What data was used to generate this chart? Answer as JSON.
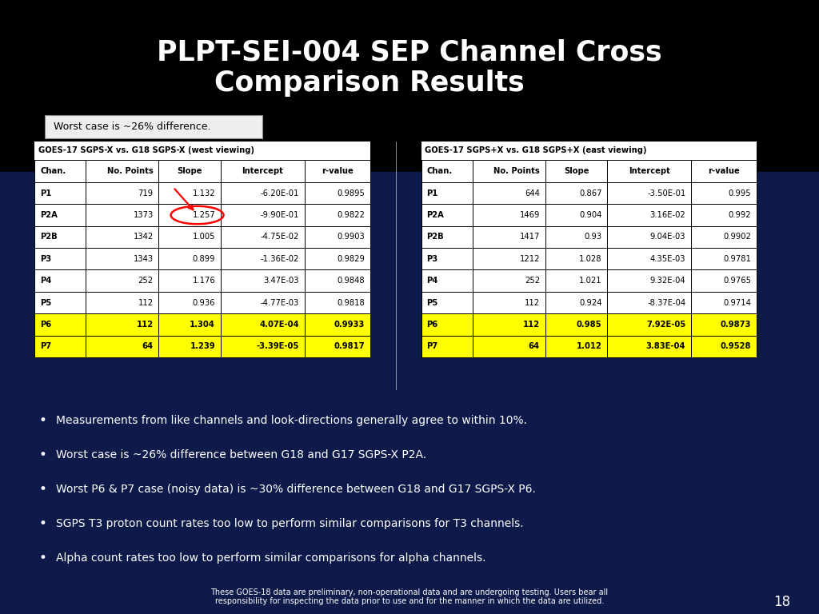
{
  "title_line1": "PLPT-SEI-004 SEP Channel Cross",
  "title_line2_normal": "Comparison ",
  "title_line2_bold": "Results",
  "background_color": "#000000",
  "title_color": "#ffffff",
  "table_bg": "#ffffff",
  "highlight_yellow": "#ffff00",
  "worst_case_label": "Worst case is ~26% difference.",
  "left_table_title": "GOES-17 SGPS-X vs. G18 SGPS-X (west viewing)",
  "right_table_title": "GOES-17 SGPS+X vs. G18 SGPS+X (east viewing)",
  "col_headers": [
    "Chan.",
    "No. Points",
    "Slope",
    "Intercept",
    "r-value"
  ],
  "left_data": [
    [
      "P1",
      "719",
      "1.132",
      "-6.20E-01",
      "0.9895"
    ],
    [
      "P2A",
      "1373",
      "1.257",
      "-9.90E-01",
      "0.9822"
    ],
    [
      "P2B",
      "1342",
      "1.005",
      "-4.75E-02",
      "0.9903"
    ],
    [
      "P3",
      "1343",
      "0.899",
      "-1.36E-02",
      "0.9829"
    ],
    [
      "P4",
      "252",
      "1.176",
      "3.47E-03",
      "0.9848"
    ],
    [
      "P5",
      "112",
      "0.936",
      "-4.77E-03",
      "0.9818"
    ],
    [
      "P6",
      "112",
      "1.304",
      "4.07E-04",
      "0.9933"
    ],
    [
      "P7",
      "64",
      "1.239",
      "-3.39E-05",
      "0.9817"
    ]
  ],
  "right_data": [
    [
      "P1",
      "644",
      "0.867",
      "-3.50E-01",
      "0.995"
    ],
    [
      "P2A",
      "1469",
      "0.904",
      "3.16E-02",
      "0.992"
    ],
    [
      "P2B",
      "1417",
      "0.93",
      "9.04E-03",
      "0.9902"
    ],
    [
      "P3",
      "1212",
      "1.028",
      "4.35E-03",
      "0.9781"
    ],
    [
      "P4",
      "252",
      "1.021",
      "9.32E-04",
      "0.9765"
    ],
    [
      "P5",
      "112",
      "0.924",
      "-8.37E-04",
      "0.9714"
    ],
    [
      "P6",
      "112",
      "0.985",
      "7.92E-05",
      "0.9873"
    ],
    [
      "P7",
      "64",
      "1.012",
      "3.83E-04",
      "0.9528"
    ]
  ],
  "yellow_rows": [
    6,
    7
  ],
  "bullet_points": [
    "Measurements from like channels and look-directions generally agree to within 10%.",
    "Worst case is ~26% difference between G18 and G17 SGPS-X P2A.",
    "Worst P6 & P7 case (noisy data) is ~30% difference between G18 and G17 SGPS-X P6.",
    "SGPS T3 proton count rates too low to perform similar comparisons for T3 channels.",
    "Alpha count rates too low to perform similar comparisons for alpha channels."
  ],
  "footer_text": "These GOES-18 data are preliminary, non-operational data and are undergoing testing. Users bear all\nresponsibility for inspecting the data prior to use and for the manner in which the data are utilized.",
  "page_number": "18"
}
